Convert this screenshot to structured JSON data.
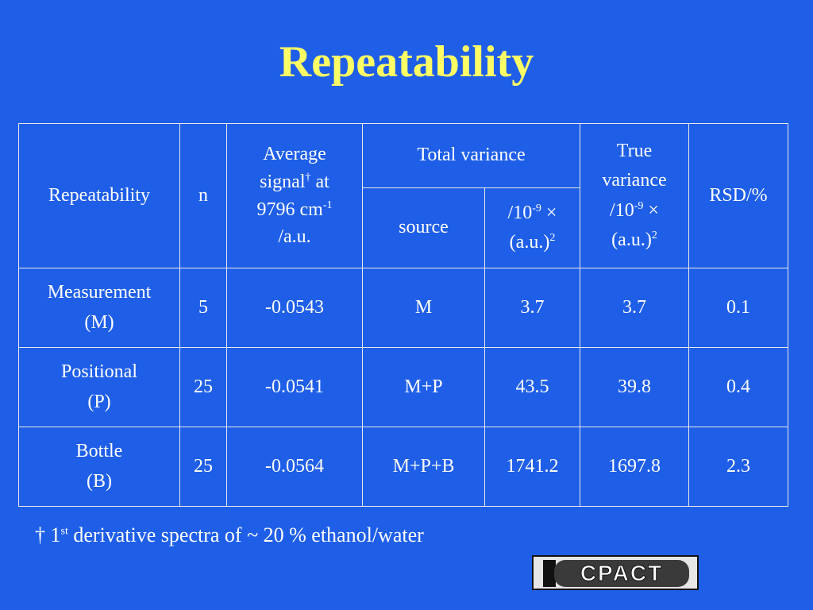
{
  "title": "Repeatability",
  "table": {
    "header": {
      "repeatability": "Repeatability",
      "n": "n",
      "avg_line1": "Average",
      "avg_line2": "signal",
      "avg_dagger": "†",
      "avg_line2b": " at",
      "avg_line3": "9796 cm",
      "avg_sup": "-1",
      "avg_line4": "/a.u.",
      "total_variance": "Total variance",
      "source": "source",
      "tv_unit_a": "/10",
      "tv_unit_sup": "-9",
      "tv_unit_b": " ×",
      "tv_unit_c": "(a.u.)",
      "tv_unit_sup2": "2",
      "true_line1": "True",
      "true_line2": "variance",
      "true_unit_a": "/10",
      "true_unit_sup": "-9",
      "true_unit_b": " ×",
      "true_unit_c": "(a.u.)",
      "true_unit_sup2": "2",
      "rsd": "RSD/%"
    },
    "rows": [
      {
        "name1": "Measurement",
        "name2": "(M)",
        "n": "5",
        "avg": "-0.0543",
        "source": "M",
        "total": "3.7",
        "true": "3.7",
        "rsd": "0.1"
      },
      {
        "name1": "Positional",
        "name2": "(P)",
        "n": "25",
        "avg": "-0.0541",
        "source": "M+P",
        "total": "43.5",
        "true": "39.8",
        "rsd": "0.4"
      },
      {
        "name1": "Bottle",
        "name2": "(B)",
        "n": "25",
        "avg": "-0.0564",
        "source": "M+P+B",
        "total": "1741.2",
        "true": "1697.8",
        "rsd": "2.3"
      }
    ]
  },
  "footnote": {
    "dagger": "†",
    "num": " 1",
    "sup": "st",
    "text": " derivative spectra of ~ 20 % ethanol/water"
  },
  "logo": {
    "text": "CPACT"
  }
}
